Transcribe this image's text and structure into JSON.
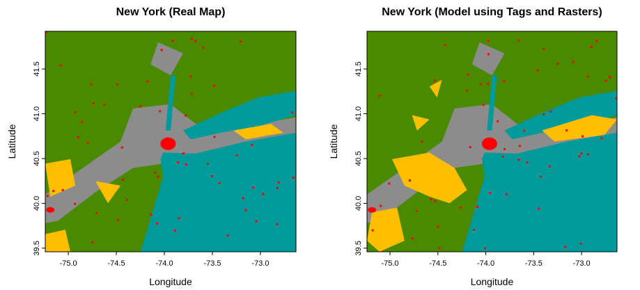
{
  "chart_data": [
    {
      "type": "raster",
      "title": "New York (Real Map)",
      "x_label": "Longitude",
      "y_label": "Latitude",
      "xlim": [
        -75.24,
        -72.63
      ],
      "ylim": [
        39.46,
        41.92
      ],
      "xticks": [
        {
          "value": -75,
          "label": "-75.0"
        },
        -74.5,
        {
          "value": -74,
          "label": "-74.0"
        },
        -73.5,
        {
          "value": -73,
          "label": "-73.0"
        }
      ],
      "yticks": [
        39.5,
        {
          "value": 40,
          "label": "40.0"
        },
        40.5,
        {
          "value": 41,
          "label": "41.0"
        },
        41.5
      ],
      "colors": [
        "#4a8a00",
        "#8c8c8c",
        "#00999c",
        "#ffbf00",
        "#ff0000"
      ]
    },
    {
      "type": "raster",
      "title": "New York (Model using Tags and Rasters)",
      "x_label": "Longitude",
      "y_label": "Latitude",
      "xlim": [
        -75.24,
        -72.63
      ],
      "ylim": [
        39.46,
        41.92
      ],
      "xticks": [
        {
          "value": -75,
          "label": "-75.0"
        },
        -74.5,
        {
          "value": -74,
          "label": "-74.0"
        },
        -73.5,
        {
          "value": -73,
          "label": "-73.0"
        }
      ],
      "yticks": [
        39.5,
        {
          "value": 40,
          "label": "40.0"
        },
        40.5,
        {
          "value": 41,
          "label": "41.0"
        },
        41.5
      ],
      "colors": [
        "#4a8a00",
        "#8c8c8c",
        "#00999c",
        "#ffbf00",
        "#ff0000"
      ]
    }
  ]
}
